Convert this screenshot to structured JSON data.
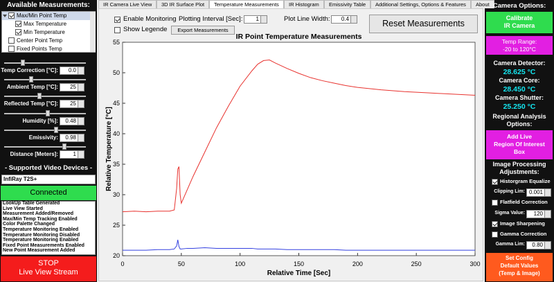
{
  "left_panel": {
    "title": "Available Measurements:",
    "tree": [
      {
        "label": "Max/Min Point Temp",
        "checked": true,
        "children": [
          {
            "label": "Max Temperature",
            "checked": true
          },
          {
            "label": "Min Temperature",
            "checked": true
          }
        ]
      },
      {
        "label": "Center Point Temp",
        "checked": false
      },
      {
        "label": "Fixed Points Temp",
        "checked": false
      }
    ],
    "fields": [
      {
        "label": "Temp Correction [°C]:",
        "value": "0.0"
      },
      {
        "label": "Ambient Temp [°C]:",
        "value": "25"
      },
      {
        "label": "Reflected Temp [°C]:",
        "value": "25"
      },
      {
        "label": "Humidity [%]:",
        "value": "0.48"
      },
      {
        "label": "Emissivity:",
        "value": "0.98"
      },
      {
        "label": "Distance [Meters]:",
        "value": "1"
      }
    ],
    "devices_title": "- Supported Video Devices -",
    "device": "InfiRay T2S+",
    "connect_button": "Connected",
    "log": [
      "LookUp Table Generated",
      "Live View Started",
      "Measurement Added/Removed",
      "Max/Min Temp Tracking Enabled",
      "Color Palette Changed",
      "Temperature Monitoring Enabled",
      "Temperature Monitoring Disabled",
      "Temperature Monitoring Enabled",
      "Fixed Point Measurements Enabled",
      "New Point Measurement Added"
    ],
    "stop_button": [
      "STOP",
      "Live View Stream"
    ]
  },
  "tabs": {
    "items": [
      "IR Camera Live View",
      "3D IR Surface Plot",
      "Temperature Measurements",
      "IR Histogram",
      "Emissivity Table",
      "Additional Settings, Options & Features",
      "About"
    ],
    "active": 2
  },
  "controls": {
    "enable_monitoring": {
      "label": "Enable Monitoring",
      "checked": true
    },
    "plotting_interval": {
      "label": "Plotting Interval [Sec]:",
      "value": "1"
    },
    "line_width": {
      "label": "Plot Line Width:",
      "value": "0.4"
    },
    "reset_button": "Reset Measurements",
    "show_legend": {
      "label": "Show Legende",
      "checked": false
    },
    "export_button": "Export Measurements"
  },
  "right_panel": {
    "title": "Camera Options:",
    "calibrate_button": [
      "Calibrate",
      "IR Camera"
    ],
    "temp_range_button": [
      "Temp Range:",
      "-20 to 120°C"
    ],
    "readouts": [
      {
        "label": "Camera Detector:",
        "value": "28.625 °C"
      },
      {
        "label": "Camera Core:",
        "value": "28.450 °C"
      },
      {
        "label": "Camera Shutter:",
        "value": "25.250 °C"
      }
    ],
    "regional_title": [
      "Regional Analysis",
      "Options:"
    ],
    "roi_button": [
      "Add Live",
      "Region Of Interest",
      "Box"
    ],
    "processing_title": [
      "Image Processing",
      "Adjustments:"
    ],
    "processing": [
      {
        "label": "Historgram Equalize",
        "checked": true
      },
      {
        "label": "Clipping Lim:",
        "value": "0.001"
      },
      {
        "label": "Flatfield Correction",
        "checked": false
      },
      {
        "label": "Sigma Value:",
        "value": "120"
      },
      {
        "label": "Image Sharpening",
        "checked": true
      },
      {
        "label": "Gamma Correction",
        "checked": false
      },
      {
        "label": "Gamma Lim:",
        "value": "0.80"
      }
    ],
    "config_button": [
      "Set Config",
      "Default Values",
      "(Temp & Image)"
    ]
  },
  "chart_data": {
    "type": "line",
    "title": "IR Point Temperature Measurements",
    "x_label": "Relative Time [Sec]",
    "y_label": "Relative Temperature [°C]",
    "x": [
      0,
      10,
      20,
      30,
      40,
      44,
      46,
      47,
      48,
      49,
      50,
      55,
      60,
      70,
      80,
      90,
      100,
      110,
      115,
      120,
      125,
      130,
      140,
      150,
      160,
      170,
      180,
      190,
      200,
      220,
      240,
      260,
      280,
      300
    ],
    "series": [
      {
        "color": "#e8322e",
        "values": [
          27.2,
          27.3,
          27.2,
          27.3,
          27.3,
          27.5,
          31,
          34.2,
          34.6,
          30,
          28.6,
          30.8,
          33,
          37,
          41,
          44.5,
          47.8,
          50.3,
          51.4,
          52,
          52.1,
          51.6,
          50.7,
          49.9,
          49.2,
          48.7,
          48.3,
          47.9,
          47.6,
          47.2,
          46.9,
          46.7,
          46.5,
          46.3
        ]
      },
      {
        "color": "#3340e0",
        "values": [
          20.9,
          20.9,
          20.9,
          21.0,
          21.0,
          21.1,
          21.6,
          22.6,
          21.5,
          21.1,
          21.1,
          21.2,
          21.2,
          21.3,
          21.2,
          21.2,
          21.2,
          21.2,
          21.1,
          21.1,
          21.1,
          21.1,
          21.0,
          21.0,
          21.0,
          21.0,
          21.0,
          20.9,
          20.9,
          20.9,
          20.9,
          20.9,
          20.9,
          20.9
        ]
      }
    ],
    "xlim": [
      0,
      300
    ],
    "xticks": [
      0,
      50,
      100,
      150,
      200,
      250,
      300
    ],
    "ylim": [
      20,
      55
    ],
    "yticks": [
      20,
      25,
      30,
      35,
      40,
      45,
      50,
      55
    ],
    "grid": false
  }
}
